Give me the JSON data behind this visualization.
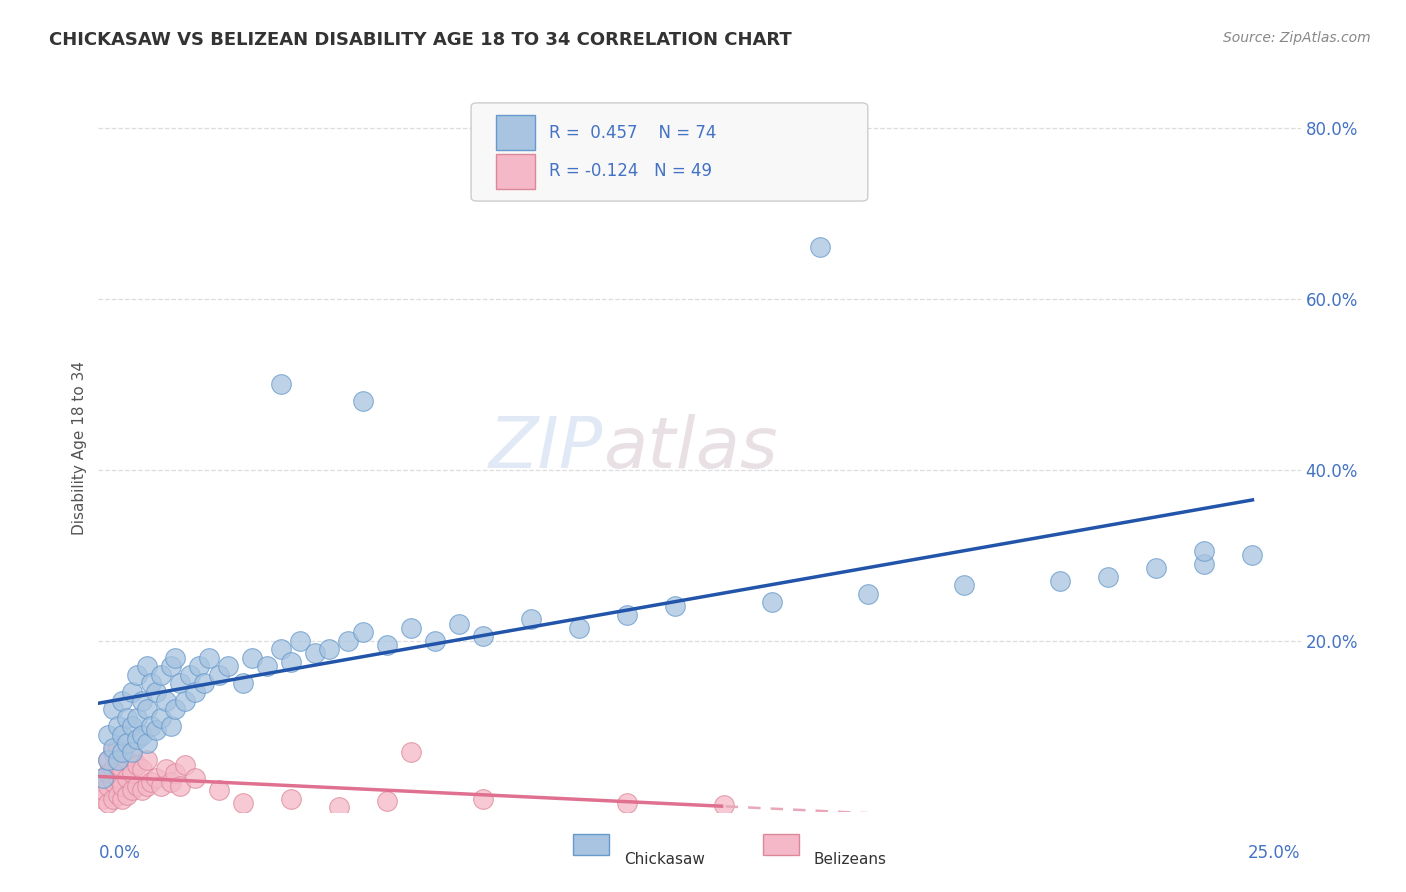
{
  "title": "CHICKASAW VS BELIZEAN DISABILITY AGE 18 TO 34 CORRELATION CHART",
  "source": "Source: ZipAtlas.com",
  "ylabel": "Disability Age 18 to 34",
  "xlim": [
    0.0,
    0.25
  ],
  "ylim": [
    0.0,
    0.85
  ],
  "ytick_vals": [
    0.2,
    0.4,
    0.6,
    0.8
  ],
  "ytick_labels": [
    "20.0%",
    "40.0%",
    "60.0%",
    "80.0%"
  ],
  "chickasaw_R": 0.457,
  "chickasaw_N": 74,
  "belizean_R": -0.124,
  "belizean_N": 49,
  "text_color": "#4472c4",
  "chickasaw_dot_color": "#a8c4e0",
  "chickasaw_dot_edge": "#6699cc",
  "belizean_dot_color": "#f4b8c8",
  "belizean_dot_edge": "#dd8899",
  "chickasaw_line_color": "#2255aa",
  "belizean_line_color": "#e07090",
  "belizean_dash_color": "#e8a8b8",
  "watermark_zip": "ZIP",
  "watermark_atlas": "atlas",
  "background_color": "#ffffff",
  "grid_color": "#dddddd",
  "legend_facecolor": "#f8f8f8",
  "legend_edgecolor": "#cccccc",
  "chickasaw_x": [
    0.001,
    0.002,
    0.002,
    0.003,
    0.003,
    0.004,
    0.004,
    0.005,
    0.005,
    0.005,
    0.006,
    0.006,
    0.007,
    0.007,
    0.007,
    0.008,
    0.008,
    0.008,
    0.009,
    0.009,
    0.01,
    0.01,
    0.01,
    0.011,
    0.011,
    0.012,
    0.012,
    0.013,
    0.013,
    0.014,
    0.015,
    0.015,
    0.016,
    0.016,
    0.017,
    0.018,
    0.019,
    0.02,
    0.021,
    0.022,
    0.023,
    0.025,
    0.027,
    0.03,
    0.032,
    0.035,
    0.038,
    0.04,
    0.042,
    0.045,
    0.048,
    0.052,
    0.055,
    0.06,
    0.065,
    0.07,
    0.075,
    0.08,
    0.09,
    0.1,
    0.11,
    0.12,
    0.14,
    0.16,
    0.18,
    0.2,
    0.21,
    0.22,
    0.23,
    0.24,
    0.038,
    0.055,
    0.15,
    0.23
  ],
  "chickasaw_y": [
    0.04,
    0.06,
    0.09,
    0.075,
    0.12,
    0.06,
    0.1,
    0.07,
    0.09,
    0.13,
    0.08,
    0.11,
    0.07,
    0.1,
    0.14,
    0.085,
    0.11,
    0.16,
    0.09,
    0.13,
    0.08,
    0.12,
    0.17,
    0.1,
    0.15,
    0.095,
    0.14,
    0.11,
    0.16,
    0.13,
    0.1,
    0.17,
    0.12,
    0.18,
    0.15,
    0.13,
    0.16,
    0.14,
    0.17,
    0.15,
    0.18,
    0.16,
    0.17,
    0.15,
    0.18,
    0.17,
    0.19,
    0.175,
    0.2,
    0.185,
    0.19,
    0.2,
    0.21,
    0.195,
    0.215,
    0.2,
    0.22,
    0.205,
    0.225,
    0.215,
    0.23,
    0.24,
    0.245,
    0.255,
    0.265,
    0.27,
    0.275,
    0.285,
    0.29,
    0.3,
    0.5,
    0.48,
    0.66,
    0.305
  ],
  "belizean_x": [
    0.001,
    0.001,
    0.001,
    0.002,
    0.002,
    0.002,
    0.002,
    0.003,
    0.003,
    0.003,
    0.003,
    0.004,
    0.004,
    0.004,
    0.004,
    0.005,
    0.005,
    0.005,
    0.005,
    0.006,
    0.006,
    0.006,
    0.007,
    0.007,
    0.007,
    0.008,
    0.008,
    0.009,
    0.009,
    0.01,
    0.01,
    0.011,
    0.012,
    0.013,
    0.014,
    0.015,
    0.016,
    0.017,
    0.018,
    0.02,
    0.025,
    0.03,
    0.04,
    0.05,
    0.06,
    0.065,
    0.08,
    0.11,
    0.13
  ],
  "belizean_y": [
    0.015,
    0.025,
    0.04,
    0.01,
    0.03,
    0.045,
    0.06,
    0.015,
    0.035,
    0.05,
    0.07,
    0.02,
    0.04,
    0.055,
    0.075,
    0.015,
    0.03,
    0.05,
    0.07,
    0.02,
    0.04,
    0.06,
    0.025,
    0.045,
    0.065,
    0.03,
    0.055,
    0.025,
    0.05,
    0.03,
    0.06,
    0.035,
    0.04,
    0.03,
    0.05,
    0.035,
    0.045,
    0.03,
    0.055,
    0.04,
    0.025,
    0.01,
    0.015,
    0.005,
    0.012,
    0.07,
    0.015,
    0.01,
    0.008
  ]
}
